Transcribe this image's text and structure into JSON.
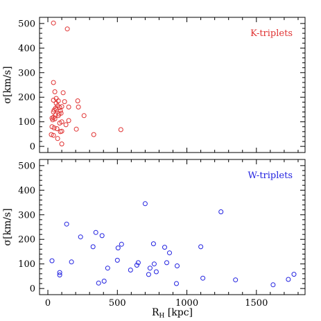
{
  "chart_data": [
    {
      "type": "scatter",
      "panel": "top",
      "series": [
        {
          "name": "K-triplets",
          "color": "#e03030",
          "marker": "open-circle",
          "points": [
            [
              40,
              502
            ],
            [
              140,
              478
            ],
            [
              40,
              260
            ],
            [
              50,
              222
            ],
            [
              110,
              218
            ],
            [
              60,
              195
            ],
            [
              40,
              188
            ],
            [
              75,
              185
            ],
            [
              120,
              182
            ],
            [
              60,
              175
            ],
            [
              70,
              165
            ],
            [
              100,
              162
            ],
            [
              150,
              160
            ],
            [
              85,
              158
            ],
            [
              55,
              155
            ],
            [
              60,
              150
            ],
            [
              45,
              148
            ],
            [
              90,
              145
            ],
            [
              40,
              140
            ],
            [
              95,
              135
            ],
            [
              80,
              132
            ],
            [
              55,
              128
            ],
            [
              75,
              125
            ],
            [
              40,
              118
            ],
            [
              30,
              115
            ],
            [
              50,
              112
            ],
            [
              35,
              108
            ],
            [
              260,
              125
            ],
            [
              220,
              160
            ],
            [
              215,
              185
            ],
            [
              150,
              105
            ],
            [
              100,
              100
            ],
            [
              85,
              95
            ],
            [
              130,
              88
            ],
            [
              30,
              80
            ],
            [
              45,
              75
            ],
            [
              65,
              72
            ],
            [
              205,
              70
            ],
            [
              330,
              48
            ],
            [
              525,
              68
            ],
            [
              100,
              62
            ],
            [
              90,
              60
            ],
            [
              25,
              48
            ],
            [
              40,
              45
            ],
            [
              70,
              32
            ],
            [
              100,
              10
            ]
          ]
        }
      ],
      "xlim": [
        -60,
        1850
      ],
      "ylim": [
        -25,
        525
      ],
      "yticks": [
        0,
        100,
        200,
        300,
        400,
        500
      ],
      "ylabel": "σ[km/s]"
    },
    {
      "type": "scatter",
      "panel": "bottom",
      "series": [
        {
          "name": "W-triplets",
          "color": "#2020e0",
          "marker": "open-circle",
          "points": [
            [
              30,
              113
            ],
            [
              85,
              65
            ],
            [
              85,
              55
            ],
            [
              135,
              262
            ],
            [
              170,
              108
            ],
            [
              235,
              210
            ],
            [
              325,
              170
            ],
            [
              345,
              228
            ],
            [
              390,
              215
            ],
            [
              365,
              22
            ],
            [
              405,
              30
            ],
            [
              430,
              83
            ],
            [
              505,
              165
            ],
            [
              500,
              115
            ],
            [
              530,
              180
            ],
            [
              595,
              75
            ],
            [
              640,
              95
            ],
            [
              650,
              105
            ],
            [
              700,
              345
            ],
            [
              725,
              57
            ],
            [
              735,
              83
            ],
            [
              760,
              182
            ],
            [
              765,
              100
            ],
            [
              780,
              68
            ],
            [
              840,
              168
            ],
            [
              855,
              105
            ],
            [
              875,
              145
            ],
            [
              930,
              92
            ],
            [
              925,
              20
            ],
            [
              1100,
              170
            ],
            [
              1115,
              42
            ],
            [
              1245,
              312
            ],
            [
              1350,
              35
            ],
            [
              1620,
              15
            ],
            [
              1730,
              37
            ],
            [
              1770,
              58
            ]
          ]
        }
      ],
      "xlim": [
        -60,
        1850
      ],
      "ylim": [
        -25,
        525
      ],
      "xticks": [
        0,
        500,
        1000,
        1500
      ],
      "yticks": [
        0,
        100,
        200,
        300,
        400,
        500
      ],
      "xlabel": "R_H [kpc]",
      "ylabel": "σ[km/s]"
    }
  ]
}
